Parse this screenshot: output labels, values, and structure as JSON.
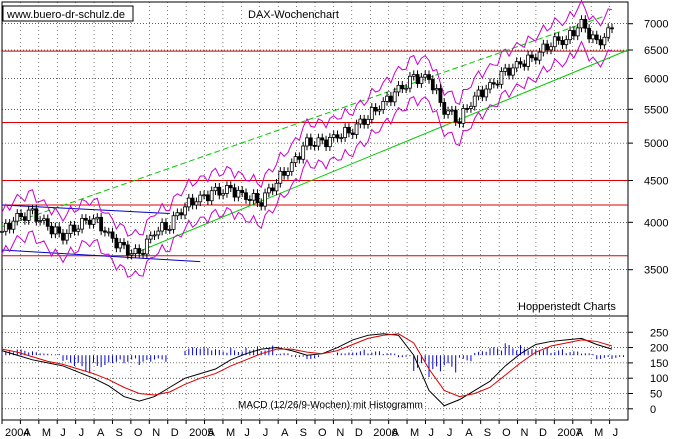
{
  "watermark": "www.buero-dr-schulz.de",
  "title": "DAX-Wochenchart",
  "source_label": "Hoppenstedt Charts",
  "macd_label": "MACD (12/26/9-Wochen) mit Histogramm",
  "colors": {
    "candle": "#000000",
    "bollinger": "#cc00cc",
    "trend": "#00cc00",
    "support": "#dd0000",
    "downtrend": "#0000cc",
    "macd_line": "#000000",
    "signal_line": "#dd0000",
    "histogram": "#0000cc",
    "grid": "#000000"
  },
  "chart_data": [
    {
      "type": "candlestick",
      "title": "DAX-Wochenchart",
      "yticks": [
        3500,
        4000,
        4500,
        5000,
        5500,
        6000,
        6500,
        7000
      ],
      "y_scale": "log",
      "ylim": [
        3250,
        7400
      ],
      "x_axis_labels": [
        "2004",
        "A",
        "M",
        "J",
        "J",
        "A",
        "S",
        "O",
        "N",
        "D",
        "2005",
        "A",
        "M",
        "J",
        "J",
        "A",
        "S",
        "O",
        "N",
        "D",
        "2006",
        "A",
        "M",
        "J",
        "J",
        "A",
        "S",
        "O",
        "N",
        "D",
        "2007",
        "A",
        "M",
        "J"
      ],
      "horizontal_levels": [
        3640,
        4200,
        4500,
        5300,
        6480
      ],
      "close_series": {
        "x_months": [
          0,
          1,
          2,
          3,
          4,
          5,
          6,
          7,
          8,
          9,
          10,
          11,
          12,
          13,
          14,
          15,
          16,
          17,
          18,
          19,
          20,
          21,
          22,
          23,
          24,
          25,
          26,
          27,
          28,
          29,
          30,
          31,
          32,
          33,
          34,
          35,
          36,
          37,
          38,
          39,
          40
        ],
        "values": [
          3900,
          4050,
          4100,
          3950,
          3850,
          3980,
          4050,
          3850,
          3700,
          3650,
          3900,
          3980,
          4200,
          4280,
          4350,
          4380,
          4300,
          4250,
          4500,
          4700,
          5000,
          5000,
          5100,
          5200,
          5400,
          5600,
          5800,
          6000,
          6000,
          5500,
          5350,
          5700,
          5850,
          6100,
          6250,
          6400,
          6650,
          6700,
          7000,
          6600,
          6900
        ]
      }
    },
    {
      "type": "line",
      "title": "MACD (12/26/9-Wochen) mit Histogramm",
      "yticks": [
        0,
        50,
        100,
        150,
        200,
        250
      ],
      "ylim": [
        -30,
        290
      ],
      "series": [
        {
          "name": "MACD",
          "values": [
            190,
            175,
            160,
            150,
            140,
            120,
            100,
            75,
            40,
            25,
            40,
            70,
            100,
            115,
            130,
            160,
            180,
            195,
            200,
            190,
            175,
            180,
            200,
            225,
            240,
            245,
            240,
            175,
            60,
            10,
            30,
            60,
            90,
            140,
            180,
            210,
            220,
            225,
            230,
            210,
            195
          ]
        },
        {
          "name": "Signal",
          "values": [
            195,
            185,
            170,
            155,
            145,
            130,
            115,
            95,
            70,
            50,
            45,
            55,
            80,
            100,
            115,
            140,
            160,
            180,
            195,
            195,
            185,
            180,
            190,
            210,
            230,
            240,
            245,
            215,
            130,
            60,
            40,
            50,
            70,
            110,
            150,
            185,
            205,
            215,
            225,
            220,
            205
          ]
        }
      ],
      "histogram": [
        10,
        15,
        10,
        5,
        -30,
        -45,
        -30,
        -20,
        -20,
        -30,
        -20,
        0,
        20,
        20,
        15,
        20,
        30,
        25,
        5,
        -5,
        -10,
        0,
        10,
        15,
        10,
        5,
        -5,
        -40,
        -70,
        -50,
        -15,
        10,
        20,
        30,
        30,
        25,
        15,
        10,
        5,
        -10,
        -10
      ]
    }
  ]
}
